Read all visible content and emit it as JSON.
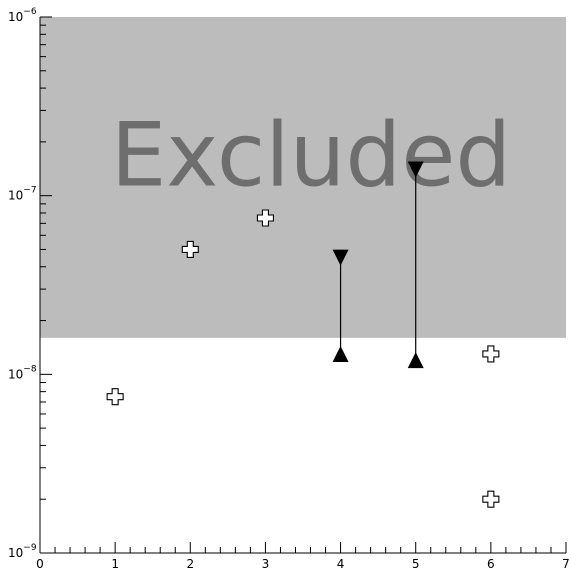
{
  "chart_data": {
    "type": "scatter",
    "title": "",
    "xlabel": "",
    "ylabel": "",
    "xlim": [
      0,
      7
    ],
    "ylim": [
      1e-09,
      1e-06
    ],
    "yscale": "log",
    "grid": false,
    "x_ticks": [
      {
        "value": 0,
        "label": "0"
      },
      {
        "value": 1,
        "label": "1"
      },
      {
        "value": 2,
        "label": "2"
      },
      {
        "value": 3,
        "label": "3"
      },
      {
        "value": 4,
        "label": "4"
      },
      {
        "value": 5,
        "label": "5"
      },
      {
        "value": 6,
        "label": "6"
      },
      {
        "value": 7,
        "label": "7"
      }
    ],
    "y_ticks": [
      {
        "value": 1e-09,
        "base": "10",
        "exp": "−9"
      },
      {
        "value": 1e-08,
        "base": "10",
        "exp": "−8"
      },
      {
        "value": 1e-07,
        "base": "10",
        "exp": "−7"
      },
      {
        "value": 1e-06,
        "base": "10",
        "exp": "−6"
      }
    ],
    "excluded_region": {
      "y_from": 1.6e-08,
      "y_to": 1e-06,
      "label": "Excluded",
      "color": "#bcbcbc",
      "label_color": "#6e6e6e"
    },
    "points": [
      {
        "x": 1,
        "y": 7.5e-09
      },
      {
        "x": 2,
        "y": 5e-08
      },
      {
        "x": 3,
        "y": 7.5e-08
      },
      {
        "x": 6,
        "y": 1.3e-08
      },
      {
        "x": 6,
        "y": 2e-09
      }
    ],
    "ranges": [
      {
        "x": 4,
        "low": 1.3e-08,
        "high": 4.5e-08
      },
      {
        "x": 5,
        "low": 1.2e-08,
        "high": 1.4e-07
      }
    ],
    "colors": {
      "axis": "#000000",
      "marker_outline": "#000000",
      "marker_fill": "#ffffff",
      "range": "#000000"
    }
  }
}
